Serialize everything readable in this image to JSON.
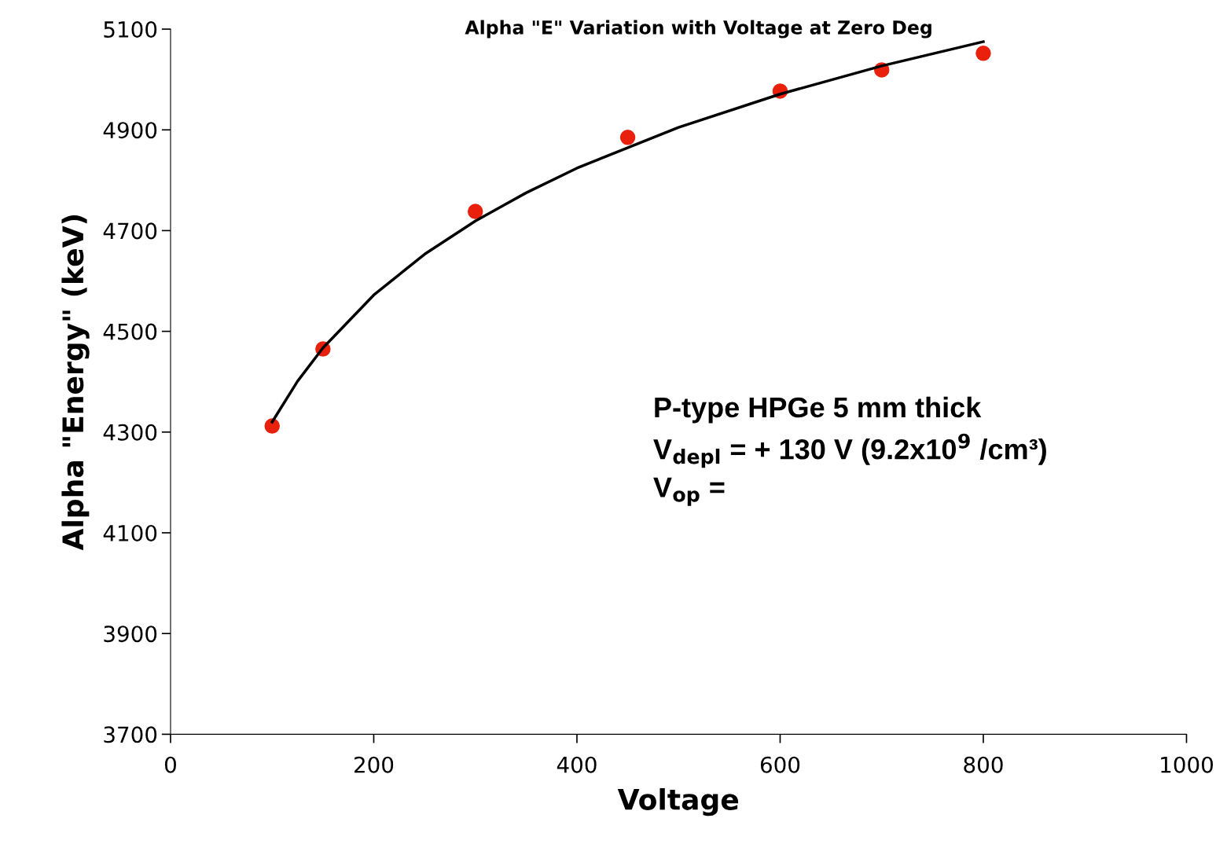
{
  "chart_data": {
    "type": "scatter",
    "title": "Alpha \"E\" Variation with Voltage at Zero Deg",
    "xlabel": "Voltage",
    "ylabel": "Alpha \"Energy\" (keV)",
    "x": [
      100,
      150,
      300,
      450,
      600,
      700,
      800
    ],
    "series": [
      {
        "color": "#e8200c",
        "marker": "circle",
        "values": [
          4312,
          4465,
          4738,
          4885,
          4977,
          5019,
          5052
        ]
      },
      {
        "type": "line",
        "color": "#000000",
        "marker": "none",
        "x": [
          100,
          125,
          150,
          200,
          250,
          300,
          350,
          400,
          500,
          600,
          700,
          800
        ],
        "values": [
          4320,
          4401,
          4467,
          4572,
          4653,
          4719,
          4775,
          4824,
          4905,
          4971,
          5027,
          5075
        ]
      }
    ],
    "xlim": [
      0,
      1000
    ],
    "xticks": [
      0,
      200,
      400,
      600,
      800,
      1000
    ],
    "ylim": [
      3700,
      5100
    ],
    "yticks": [
      3700,
      3900,
      4100,
      4300,
      4500,
      4700,
      4900,
      5100
    ],
    "grid": false,
    "legend": false,
    "annotations": [
      "P-type HPGe 5 mm thick",
      "V$_{depl}$ = + 130 V (9.2x10$^{9}$ /cm³)",
      "V$_{op}$ ="
    ]
  }
}
